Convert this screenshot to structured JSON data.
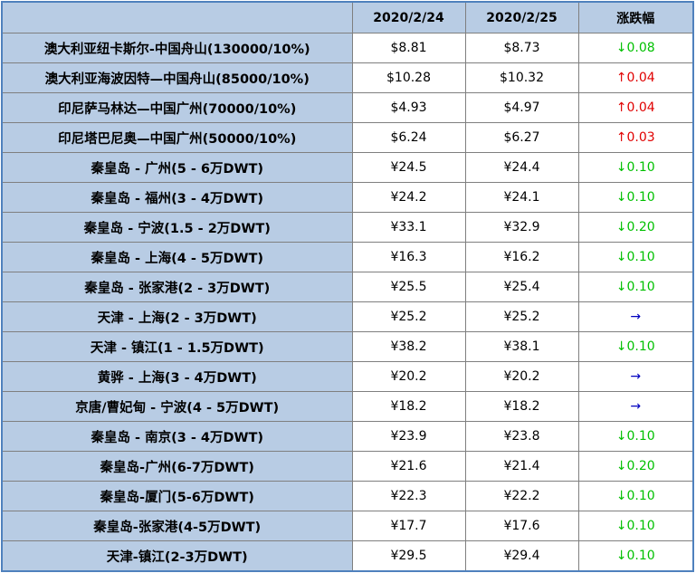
{
  "table": {
    "header": [
      "2020/2/24",
      "2020/2/25",
      "涨跌幅"
    ],
    "rows": [
      [
        "澳大利亚纽卡斯尔-中国舟山(130000/10%)",
        "$8.81",
        "$8.73",
        "↓0.08"
      ],
      [
        "澳大利亚海波因特—中国舟山(85000/10%)",
        "$10.28",
        "$10.32",
        "↑0.04"
      ],
      [
        "印尼萨马林达—中国广州(70000/10%)",
        "$4.93",
        "$4.97",
        "↑0.04"
      ],
      [
        "印尼塔巴尼奥—中国广州(50000/10%)",
        "$6.24",
        "$6.27",
        "↑0.03"
      ],
      [
        "秦皇岛 - 广州(5 - 6万DWT)",
        "¥24.5",
        "¥24.4",
        "↓0.10"
      ],
      [
        "秦皇岛 - 福州(3 - 4万DWT)",
        "¥24.2",
        "¥24.1",
        "↓0.10"
      ],
      [
        "秦皇岛 - 宁波(1.5 - 2万DWT)",
        "¥33.1",
        "¥32.9",
        "↓0.20"
      ],
      [
        "秦皇岛 - 上海(4 - 5万DWT)",
        "¥16.3",
        "¥16.2",
        "↓0.10"
      ],
      [
        "秦皇岛 - 张家港(2 - 3万DWT)",
        "¥25.5",
        "¥25.4",
        "↓0.10"
      ],
      [
        "天津 - 上海(2 - 3万DWT)",
        "¥25.2",
        "¥25.2",
        "→"
      ],
      [
        "天津 - 镇江(1 - 1.5万DWT)",
        "¥38.2",
        "¥38.1",
        "↓0.10"
      ],
      [
        "黄骅 - 上海(3 - 4万DWT)",
        "¥20.2",
        "¥20.2",
        "→"
      ],
      [
        "京唐/曹妃甸 - 宁波(4 - 5万DWT)",
        "¥18.2",
        "¥18.2",
        "→"
      ],
      [
        "秦皇岛 - 南京(3 - 4万DWT)",
        "¥23.9",
        "¥23.8",
        "↓0.10"
      ],
      [
        "秦皇岛-广州(6-7万DWT)",
        "¥21.6",
        "¥21.4",
        "↓0.20"
      ],
      [
        "秦皇岛-厦门(5-6万DWT)",
        "¥22.3",
        "¥22.2",
        "↓0.10"
      ],
      [
        "秦皇岛-张家港(4-5万DWT)",
        "¥17.7",
        "¥17.6",
        "↓0.10"
      ],
      [
        "天津-镇江(2-3万DWT)",
        "¥29.5",
        "¥29.4",
        "↓0.10"
      ]
    ],
    "change_colors": [
      "#00c000",
      "#e00000",
      "#e00000",
      "#e00000",
      "#00c000",
      "#00c000",
      "#00c000",
      "#00c000",
      "#00c000",
      "#0000c0",
      "#00c000",
      "#0000c0",
      "#0000c0",
      "#00c000",
      "#00c000",
      "#00c000",
      "#00c000",
      "#00c000"
    ]
  }
}
